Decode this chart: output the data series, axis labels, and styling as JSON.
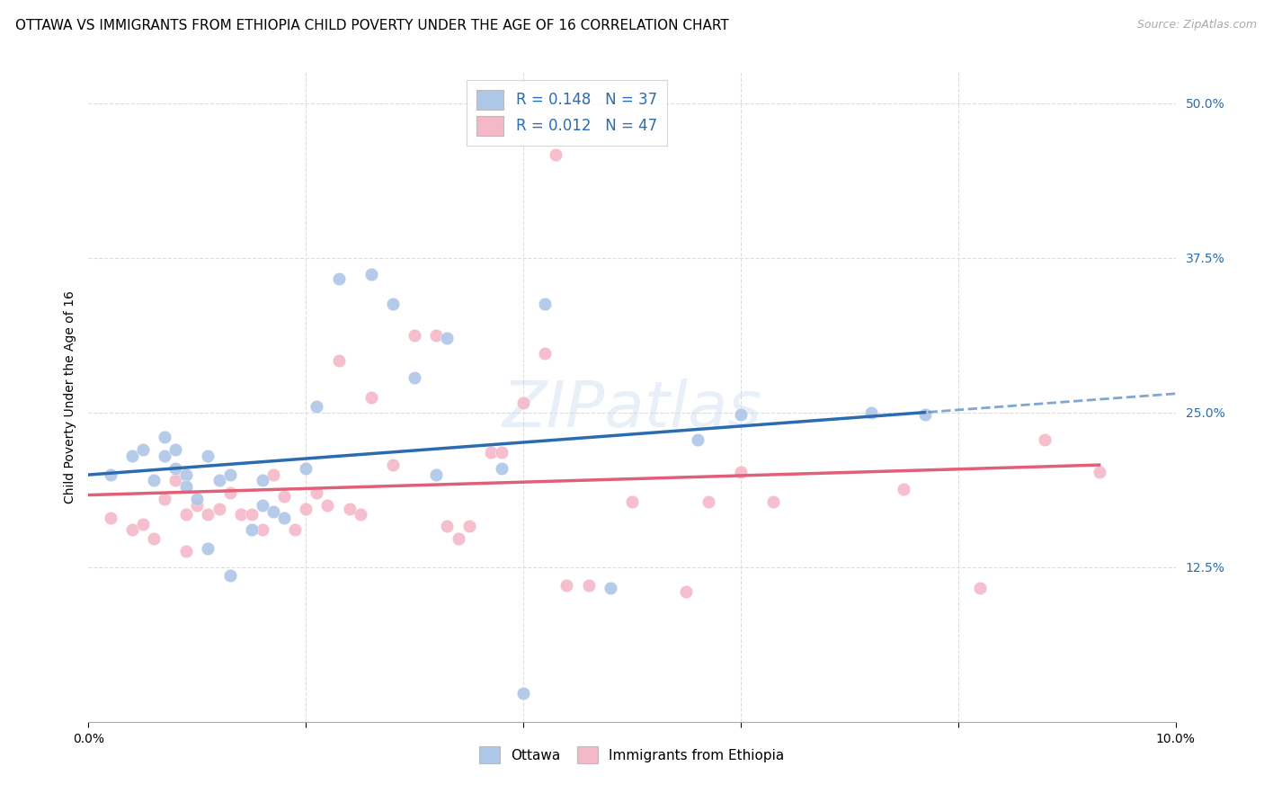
{
  "title": "OTTAWA VS IMMIGRANTS FROM ETHIOPIA CHILD POVERTY UNDER THE AGE OF 16 CORRELATION CHART",
  "source": "Source: ZipAtlas.com",
  "ylabel": "Child Poverty Under the Age of 16",
  "xlim": [
    0.0,
    0.1
  ],
  "ylim": [
    0.0,
    0.525
  ],
  "yticks_right": [
    0.0,
    0.125,
    0.25,
    0.375,
    0.5
  ],
  "ytick_labels_right": [
    "",
    "12.5%",
    "25.0%",
    "37.5%",
    "50.0%"
  ],
  "legend_labels": [
    "Ottawa",
    "Immigrants from Ethiopia"
  ],
  "ottawa_R": "0.148",
  "ottawa_N": "37",
  "ethiopia_R": "0.012",
  "ethiopia_N": "47",
  "ottawa_color": "#aec6e8",
  "ethiopia_color": "#f4b8c8",
  "ottawa_line_color": "#2b6cb0",
  "ethiopia_line_color": "#e0607a",
  "highlight_color": "#2b6cb0",
  "watermark": "ZIPatlas",
  "ottawa_x": [
    0.002,
    0.004,
    0.005,
    0.006,
    0.007,
    0.007,
    0.008,
    0.008,
    0.009,
    0.009,
    0.01,
    0.011,
    0.011,
    0.012,
    0.013,
    0.013,
    0.015,
    0.016,
    0.016,
    0.017,
    0.018,
    0.02,
    0.021,
    0.023,
    0.026,
    0.028,
    0.03,
    0.032,
    0.038,
    0.04,
    0.042,
    0.048,
    0.056,
    0.06,
    0.072,
    0.077,
    0.033
  ],
  "ottawa_y": [
    0.2,
    0.215,
    0.22,
    0.195,
    0.215,
    0.23,
    0.22,
    0.205,
    0.2,
    0.19,
    0.18,
    0.14,
    0.215,
    0.195,
    0.2,
    0.118,
    0.155,
    0.195,
    0.175,
    0.17,
    0.165,
    0.205,
    0.255,
    0.358,
    0.362,
    0.338,
    0.278,
    0.2,
    0.205,
    0.023,
    0.338,
    0.108,
    0.228,
    0.248,
    0.25,
    0.248,
    0.31
  ],
  "ethiopia_x": [
    0.002,
    0.004,
    0.005,
    0.006,
    0.007,
    0.008,
    0.009,
    0.009,
    0.01,
    0.011,
    0.012,
    0.013,
    0.014,
    0.015,
    0.016,
    0.017,
    0.018,
    0.019,
    0.02,
    0.021,
    0.022,
    0.023,
    0.024,
    0.025,
    0.026,
    0.028,
    0.03,
    0.032,
    0.033,
    0.034,
    0.035,
    0.037,
    0.038,
    0.04,
    0.042,
    0.044,
    0.046,
    0.05,
    0.055,
    0.057,
    0.06,
    0.063,
    0.075,
    0.082,
    0.088,
    0.093,
    0.043
  ],
  "ethiopia_y": [
    0.165,
    0.155,
    0.16,
    0.148,
    0.18,
    0.195,
    0.138,
    0.168,
    0.175,
    0.168,
    0.172,
    0.185,
    0.168,
    0.168,
    0.155,
    0.2,
    0.182,
    0.155,
    0.172,
    0.185,
    0.175,
    0.292,
    0.172,
    0.168,
    0.262,
    0.208,
    0.312,
    0.312,
    0.158,
    0.148,
    0.158,
    0.218,
    0.218,
    0.258,
    0.298,
    0.11,
    0.11,
    0.178,
    0.105,
    0.178,
    0.202,
    0.178,
    0.188,
    0.108,
    0.228,
    0.202,
    0.458
  ],
  "grid_color": "#dddddd",
  "background_color": "#ffffff",
  "title_fontsize": 11,
  "axis_label_fontsize": 10,
  "tick_fontsize": 10
}
